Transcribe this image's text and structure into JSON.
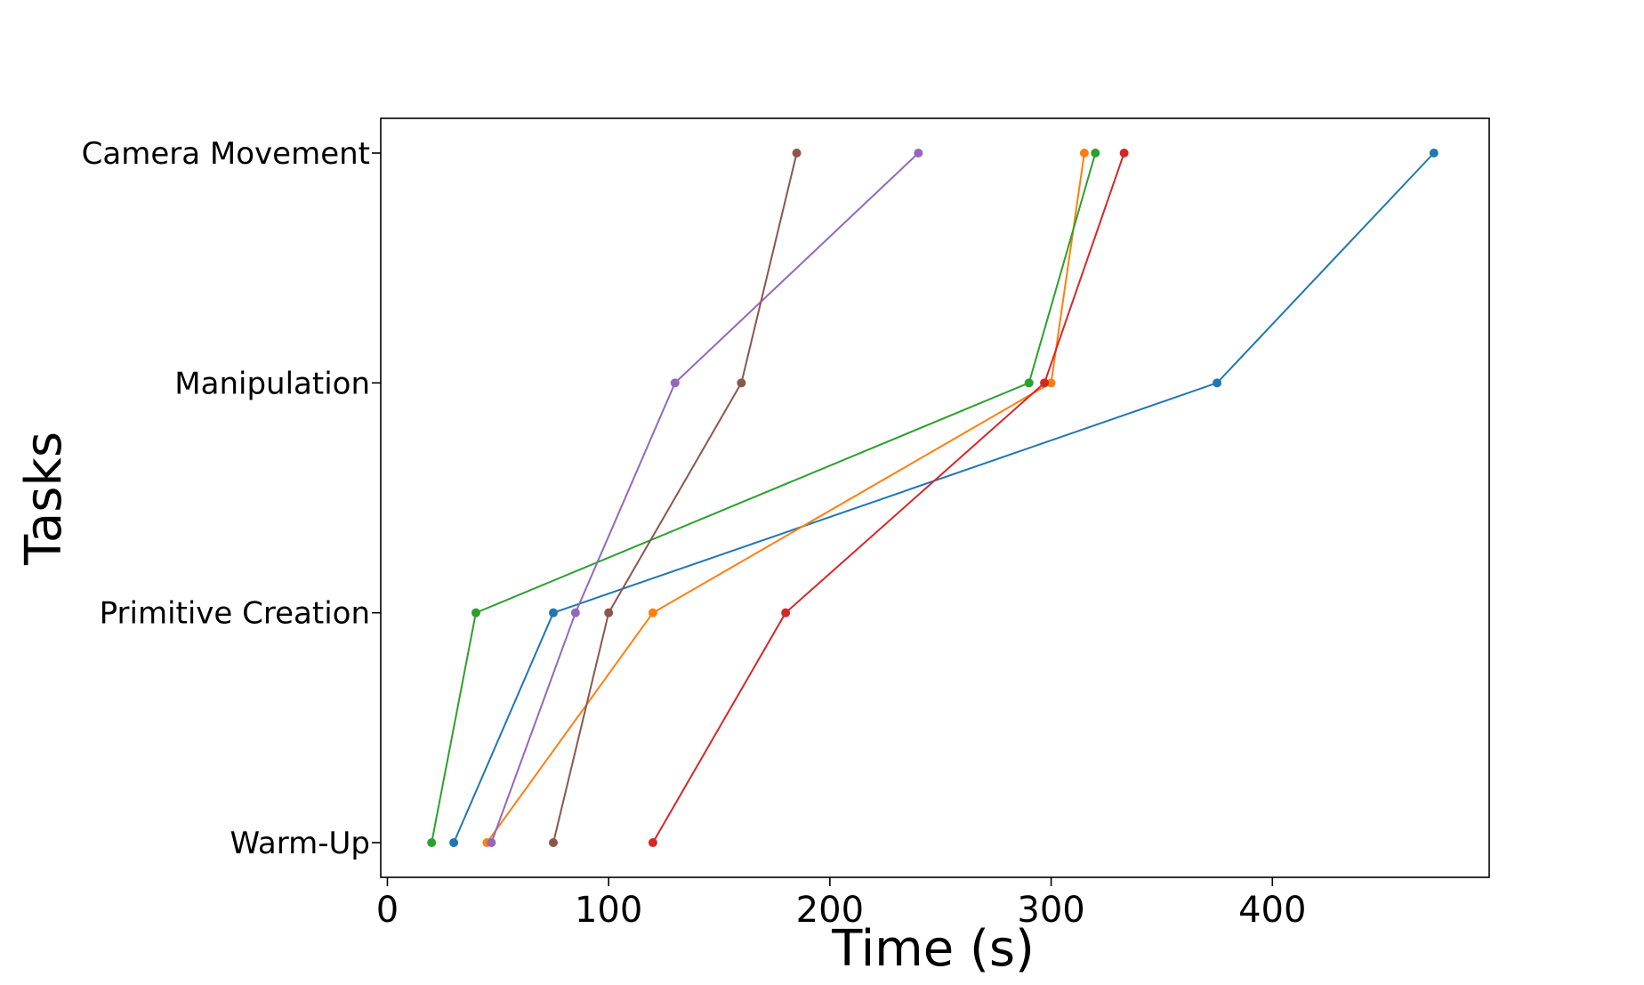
{
  "chart_data": {
    "type": "line",
    "title": "",
    "xlabel": "Time (s)",
    "ylabel": "Tasks",
    "xlim": [
      -3,
      498
    ],
    "x_ticks": [
      0,
      100,
      200,
      300,
      400
    ],
    "categories": [
      "Warm-Up",
      "Primitive Creation",
      "Manipulation",
      "Camera Movement"
    ],
    "grid": false,
    "legend": "none",
    "series": [
      {
        "color": "#1f77b4",
        "values": [
          30,
          75,
          375,
          473
        ]
      },
      {
        "color": "#ff7f0e",
        "values": [
          45,
          120,
          300,
          315
        ]
      },
      {
        "color": "#2ca02c",
        "values": [
          20,
          40,
          290,
          320
        ]
      },
      {
        "color": "#d62728",
        "values": [
          120,
          180,
          297,
          333
        ]
      },
      {
        "color": "#9467bd",
        "values": [
          47,
          85,
          130,
          240
        ]
      },
      {
        "color": "#8c564b",
        "values": [
          75,
          100,
          160,
          185
        ]
      }
    ]
  }
}
